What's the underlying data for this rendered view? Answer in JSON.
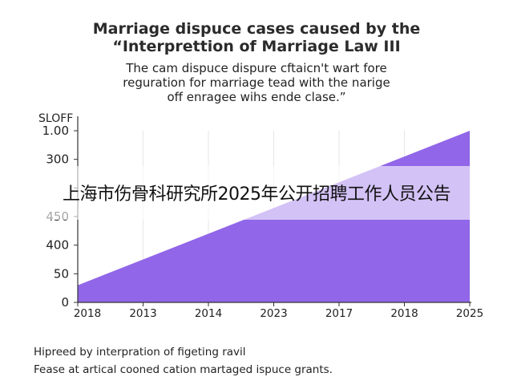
{
  "header": {
    "title_line1": "Marriage dispuce cases caused by the",
    "title_line2": "“Interprettion of Marriage Law III",
    "subtitle_line1": "The cam dispuce dispure cftaicn't wart fore",
    "subtitle_line2": "reguration for marriage tead with the narige",
    "subtitle_line3": "off enragee wihs ende clase.”"
  },
  "footer": {
    "line1": "Hipreed by interpration of figeting ravil",
    "line2": "Fease at artical cooned cation martaged ispuce grants."
  },
  "overlay": {
    "banner_text": "上海市伤骨科研究所2025年公开招聘工作人员公告"
  },
  "colors": {
    "area_fill": "#9166e8",
    "axis": "#333333",
    "grid": "#e6e6e6"
  },
  "chart_data": {
    "type": "area",
    "ylabel": "SLOFF",
    "x_tick_labels": [
      "2018",
      "2013",
      "2014",
      "2023",
      "2017",
      "2018",
      "2025"
    ],
    "y_tick_labels": [
      "1.00",
      "300",
      "",
      "450",
      "400",
      "50",
      "0"
    ],
    "series": [
      {
        "x": [
          0,
          6
        ],
        "y": [
          0.1,
          1.0
        ]
      }
    ],
    "grid": true,
    "legend": "none"
  }
}
